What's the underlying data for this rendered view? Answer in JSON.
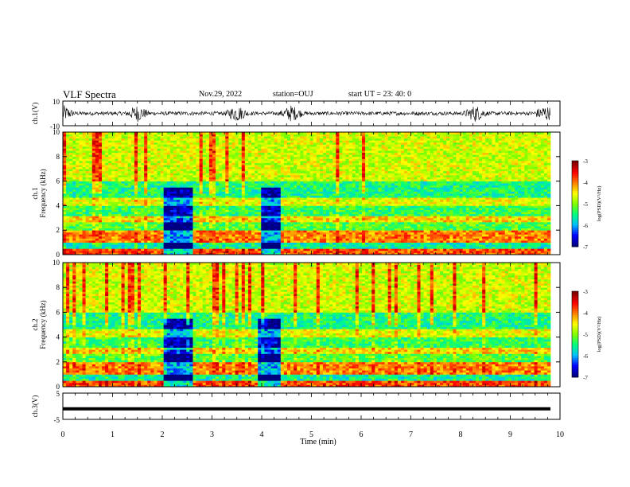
{
  "header": {
    "title": "VLF Spectra",
    "date": "Nov.29, 2022",
    "station": "station=OUJ",
    "start": "start  UT =  23: 40: 0"
  },
  "chart_data": [
    {
      "type": "line",
      "panel": "waveform-ch1",
      "ylabel": "ch.1(V)",
      "ylim": [
        -10,
        10
      ],
      "yticks": [
        "10",
        "-10"
      ],
      "xlim": [
        0,
        10
      ],
      "note_values": "broadband waveform amplitude, bursts near 1.5, 3.5, 4.6, 8.3 min",
      "bursts_min": [
        0.0,
        1.5,
        3.5,
        4.6,
        8.3,
        9.7
      ]
    },
    {
      "type": "heatmap",
      "panel": "spectrogram-ch1",
      "ylabel_top": "ch.1",
      "ylabel": "Frequency (kHz)",
      "ylim": [
        0,
        10
      ],
      "yticks": [
        "0",
        "2",
        "4",
        "6",
        "8",
        "10"
      ],
      "xlim": [
        0,
        9.8
      ],
      "colorbar": {
        "label": "log(PSD)(V²/Hz)",
        "range": [
          -7,
          -3
        ],
        "ticks": [
          "-3",
          "-4",
          "-5",
          "-6",
          "-7"
        ]
      },
      "quiet_intervals_min": [
        [
          2.0,
          2.6
        ],
        [
          4.0,
          4.4
        ]
      ]
    },
    {
      "type": "heatmap",
      "panel": "spectrogram-ch2",
      "ylabel_top": "ch.2",
      "ylabel": "Frequency (kHz)",
      "ylim": [
        0,
        10
      ],
      "yticks": [
        "0",
        "2",
        "4",
        "6",
        "8",
        "10"
      ],
      "xlim": [
        0,
        9.8
      ],
      "colorbar": {
        "label": "log(PSD)(V²/Hz)",
        "range": [
          -7,
          -3
        ],
        "ticks": [
          "-3",
          "-4",
          "-5",
          "-6",
          "-7"
        ]
      },
      "quiet_intervals_min": [
        [
          2.0,
          2.6
        ],
        [
          3.9,
          4.4
        ]
      ]
    },
    {
      "type": "line",
      "panel": "waveform-ch3",
      "ylabel": "ch.3(V)",
      "ylim": [
        -5,
        5
      ],
      "yticks": [
        "5",
        "-5"
      ],
      "values_constant": -1,
      "xlim": [
        0,
        9.8
      ]
    }
  ],
  "xaxis": {
    "label": "Time (min)",
    "ticks": [
      "0",
      "1",
      "2",
      "3",
      "4",
      "5",
      "6",
      "7",
      "8",
      "9",
      "10"
    ]
  },
  "colors": {
    "colormap": [
      "#00007f",
      "#0000ff",
      "#00bfff",
      "#00ff7f",
      "#7fff00",
      "#ffff00",
      "#ff7f00",
      "#ff0000",
      "#7f0000"
    ]
  }
}
